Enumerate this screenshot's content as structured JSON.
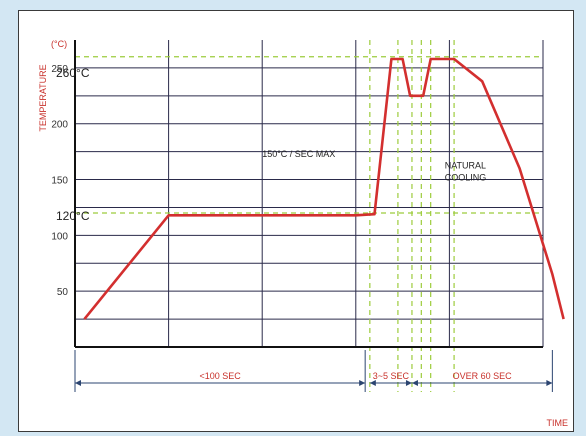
{
  "chart_data": {
    "type": "line",
    "ylabel": "TEMPERATURE",
    "yunit": "(°C)",
    "xlabel": "TIME",
    "ylim": [
      0,
      275
    ],
    "yticks": [
      50,
      100,
      150,
      200,
      250
    ],
    "x_sections": 5,
    "grid": true,
    "series": [
      {
        "color": "#d32f2f",
        "points": [
          [
            0.1,
            25
          ],
          [
            1.0,
            118
          ],
          [
            3.0,
            118
          ],
          [
            3.2,
            119
          ],
          [
            3.38,
            258
          ],
          [
            3.5,
            258
          ],
          [
            3.58,
            225
          ],
          [
            3.72,
            225
          ],
          [
            3.8,
            258
          ],
          [
            4.05,
            258
          ],
          [
            4.35,
            238
          ],
          [
            4.75,
            160
          ],
          [
            5.1,
            65
          ],
          [
            5.22,
            25
          ]
        ]
      }
    ],
    "reference_lines": [
      {
        "value": 260,
        "label": "260°C",
        "color": "#9ccc3c"
      },
      {
        "value": 120,
        "label": "120°C",
        "color": "#9ccc3c"
      }
    ],
    "vertical_guides": [
      3.15,
      3.45,
      3.6,
      3.7,
      3.8,
      4.05
    ],
    "annotations": [
      {
        "text": "150°C / SEC MAX",
        "x": 2.0,
        "y": 170
      },
      {
        "text": "NATURAL",
        "x": 3.95,
        "y": 160
      },
      {
        "text": "COOLING",
        "x": 3.95,
        "y": 149
      }
    ],
    "durations": [
      {
        "label": "<100 SEC",
        "from": 0.0,
        "to": 3.1
      },
      {
        "label": "3~5 SEC",
        "from": 3.15,
        "to": 3.6
      },
      {
        "label": "OVER 60 SEC",
        "from": 3.6,
        "to": 5.1
      }
    ],
    "colors": {
      "curve": "#d32f2f",
      "guide": "#9ccc3c",
      "grid": "#2a2a4a",
      "arrow": "#2b4470"
    }
  }
}
